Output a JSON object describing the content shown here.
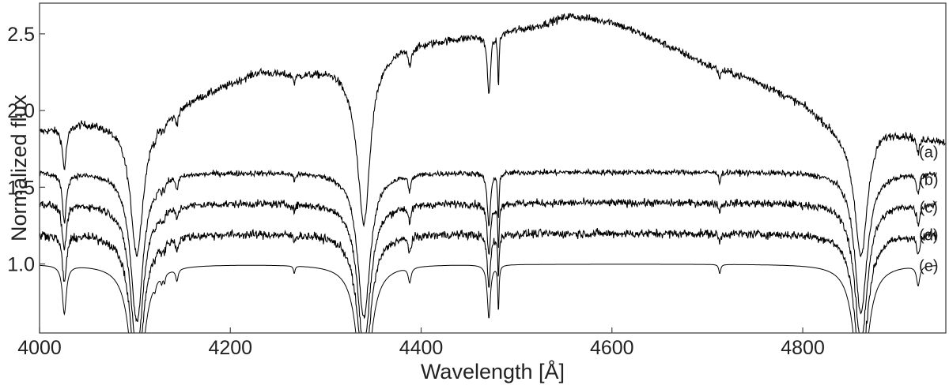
{
  "chart_data": {
    "type": "line",
    "title": "",
    "xlabel": "Wavelength [Å]",
    "ylabel": "Normalized flux",
    "xlim": [
      4000,
      4950
    ],
    "ylim": [
      0.55,
      2.7
    ],
    "xticks": [
      4000,
      4200,
      4400,
      4600,
      4800
    ],
    "xtick_labels": [
      "4000",
      "4200",
      "4400",
      "4600",
      "4800"
    ],
    "yticks": [
      1.0,
      1.5,
      2.0,
      2.5
    ],
    "ytick_labels": [
      "1.0",
      "1.5",
      "2.0",
      "2.5"
    ],
    "grid": false,
    "line_color": "#000000",
    "absorption_lines": [
      {
        "center": 4026,
        "depth": 0.32,
        "width": 2.5
      },
      {
        "center": 4102,
        "depth": 0.98,
        "width": 8
      },
      {
        "center": 4121,
        "depth": 0.05,
        "width": 1
      },
      {
        "center": 4128,
        "depth": 0.05,
        "width": 1
      },
      {
        "center": 4131,
        "depth": 0.06,
        "width": 1
      },
      {
        "center": 4144,
        "depth": 0.08,
        "width": 1.5
      },
      {
        "center": 4267,
        "depth": 0.05,
        "width": 1
      },
      {
        "center": 4340,
        "depth": 0.95,
        "width": 8
      },
      {
        "center": 4388,
        "depth": 0.1,
        "width": 1.8
      },
      {
        "center": 4471,
        "depth": 0.35,
        "width": 2
      },
      {
        "center": 4481,
        "depth": 0.3,
        "width": 0.8
      },
      {
        "center": 4713,
        "depth": 0.06,
        "width": 1.2
      },
      {
        "center": 4861,
        "depth": 0.92,
        "width": 8
      },
      {
        "center": 4921,
        "depth": 0.13,
        "width": 2
      }
    ],
    "series": [
      {
        "name": "(a)",
        "label_at": [
          4932,
          1.73
        ],
        "offset": 0,
        "noise": 0.025,
        "continuum_x": [
          4000,
          4025,
          4045,
          4070,
          4100,
          4140,
          4160,
          4200,
          4230,
          4270,
          4310,
          4335,
          4340,
          4350,
          4380,
          4420,
          4470,
          4520,
          4555,
          4600,
          4650,
          4700,
          4750,
          4800,
          4850,
          4862,
          4880,
          4900,
          4950
        ],
        "continuum_y": [
          1.87,
          1.9,
          1.93,
          1.92,
          1.9,
          2.0,
          2.08,
          2.18,
          2.26,
          2.24,
          2.28,
          2.2,
          2.2,
          2.35,
          2.42,
          2.46,
          2.5,
          2.55,
          2.62,
          2.58,
          2.45,
          2.3,
          2.2,
          2.05,
          1.83,
          1.8,
          1.9,
          1.87,
          1.8
        ]
      },
      {
        "name": "(b)",
        "label_at": [
          4932,
          1.55
        ],
        "offset": 0.6,
        "noise": 0.018
      },
      {
        "name": "(c)",
        "label_at": [
          4932,
          1.37
        ],
        "offset": 0.4,
        "noise": 0.025
      },
      {
        "name": "(d)",
        "label_at": [
          4932,
          1.19
        ],
        "offset": 0.2,
        "noise": 0.028
      },
      {
        "name": "(e)",
        "label_at": [
          4932,
          0.99
        ],
        "offset": 0,
        "noise": 0
      }
    ]
  }
}
